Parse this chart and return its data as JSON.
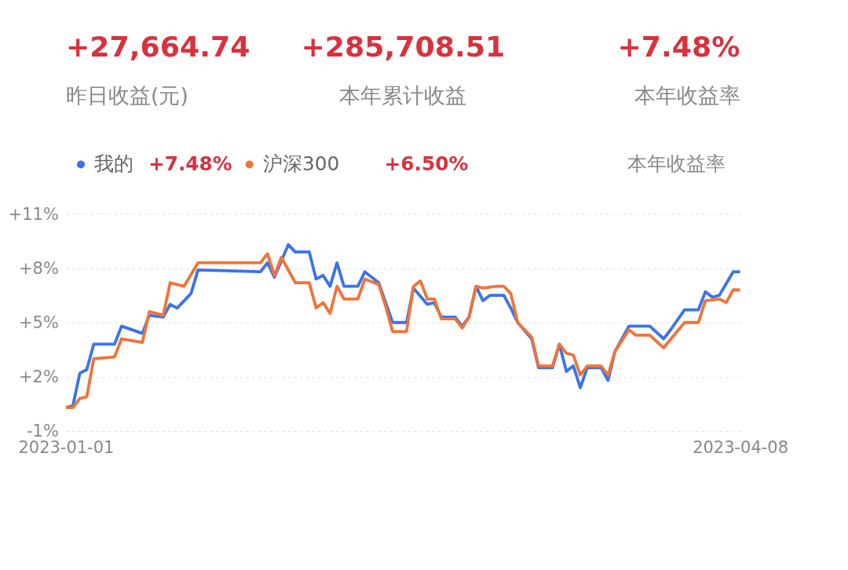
{
  "chart_data": {
    "type": "line",
    "legend": "top left",
    "grid": "y",
    "line_style": "solid",
    "marker": "none",
    "annotations": [
      "+27,664.74",
      "昨日收益(元)",
      "+285,708.51",
      "本年累计收益",
      "+7.48%",
      "本年收益率",
      "+7.48%",
      "+6.50%",
      "本年收益率"
    ],
    "xlim": [
      "2023-01-01",
      "2023-04-08"
    ],
    "xticks": [
      "2023-01-01",
      "2023-04-08"
    ],
    "ylim": [
      -1,
      11
    ],
    "yticks": [
      {
        "value": -1,
        "label": "-1%"
      },
      {
        "value": 2,
        "label": "+2%"
      },
      {
        "value": 5,
        "label": "+5%"
      },
      {
        "value": 8,
        "label": "+8%"
      },
      {
        "value": 11,
        "label": "+11%"
      }
    ],
    "series": [
      {
        "name": "我的",
        "color": "#3a73e8",
        "x": [
          "2023-01-01",
          "2023-01-02",
          "2023-01-03",
          "2023-01-04",
          "2023-01-05",
          "2023-01-08",
          "2023-01-09",
          "2023-01-12",
          "2023-01-13",
          "2023-01-15",
          "2023-01-16",
          "2023-01-17",
          "2023-01-19",
          "2023-01-20",
          "2023-01-29",
          "2023-01-30",
          "2023-01-31",
          "2023-02-02",
          "2023-02-03",
          "2023-02-05",
          "2023-02-06",
          "2023-02-07",
          "2023-02-08",
          "2023-02-09",
          "2023-02-10",
          "2023-02-12",
          "2023-02-13",
          "2023-02-15",
          "2023-02-16",
          "2023-02-17",
          "2023-02-19",
          "2023-02-20",
          "2023-02-22",
          "2023-02-23",
          "2023-02-24",
          "2023-02-26",
          "2023-02-27",
          "2023-02-28",
          "2023-03-01",
          "2023-03-02",
          "2023-03-03",
          "2023-03-05",
          "2023-03-06",
          "2023-03-07",
          "2023-03-09",
          "2023-03-10",
          "2023-03-12",
          "2023-03-13",
          "2023-03-14",
          "2023-03-15",
          "2023-03-16",
          "2023-03-17",
          "2023-03-19",
          "2023-03-20",
          "2023-03-21",
          "2023-03-23",
          "2023-03-26",
          "2023-03-28",
          "2023-03-29",
          "2023-03-31",
          "2023-04-02",
          "2023-04-03",
          "2023-04-04",
          "2023-04-05",
          "2023-04-07",
          "2023-04-08"
        ],
        "values": [
          0.3,
          0.4,
          2.2,
          2.4,
          3.8,
          3.8,
          4.8,
          4.4,
          5.4,
          5.3,
          6.0,
          5.8,
          6.6,
          7.9,
          7.8,
          8.3,
          7.5,
          9.3,
          8.9,
          8.9,
          7.4,
          7.6,
          7.0,
          8.3,
          7.0,
          7.0,
          7.8,
          7.2,
          6.1,
          5.0,
          5.0,
          6.9,
          6.0,
          6.1,
          5.3,
          5.3,
          4.8,
          5.3,
          7.0,
          6.2,
          6.5,
          6.5,
          5.8,
          5.0,
          4.1,
          2.5,
          2.5,
          3.8,
          2.3,
          2.6,
          1.4,
          2.5,
          2.5,
          1.8,
          3.4,
          4.8,
          4.8,
          4.1,
          4.6,
          5.7,
          5.7,
          6.7,
          6.4,
          6.5,
          7.8,
          7.8
        ]
      },
      {
        "name": "沪深300",
        "type": "line",
        "color": "#f0733a",
        "x": [
          "2023-01-01",
          "2023-01-02",
          "2023-01-03",
          "2023-01-04",
          "2023-01-05",
          "2023-01-08",
          "2023-01-09",
          "2023-01-12",
          "2023-01-13",
          "2023-01-15",
          "2023-01-16",
          "2023-01-18",
          "2023-01-20",
          "2023-01-29",
          "2023-01-30",
          "2023-01-31",
          "2023-02-01",
          "2023-02-03",
          "2023-02-05",
          "2023-02-06",
          "2023-02-07",
          "2023-02-08",
          "2023-02-09",
          "2023-02-10",
          "2023-02-12",
          "2023-02-13",
          "2023-02-15",
          "2023-02-16",
          "2023-02-17",
          "2023-02-19",
          "2023-02-20",
          "2023-02-21",
          "2023-02-22",
          "2023-02-23",
          "2023-02-24",
          "2023-02-26",
          "2023-02-27",
          "2023-02-28",
          "2023-03-01",
          "2023-03-02",
          "2023-03-04",
          "2023-03-05",
          "2023-03-06",
          "2023-03-07",
          "2023-03-09",
          "2023-03-10",
          "2023-03-12",
          "2023-03-13",
          "2023-03-14",
          "2023-03-15",
          "2023-03-16",
          "2023-03-17",
          "2023-03-19",
          "2023-03-20",
          "2023-03-21",
          "2023-03-23",
          "2023-03-24",
          "2023-03-26",
          "2023-03-28",
          "2023-03-31",
          "2023-04-02",
          "2023-04-03",
          "2023-04-05",
          "2023-04-06",
          "2023-04-07",
          "2023-04-08"
        ],
        "values": [
          0.3,
          0.3,
          0.8,
          0.9,
          3.0,
          3.1,
          4.1,
          3.9,
          5.6,
          5.4,
          7.2,
          7.0,
          8.3,
          8.3,
          8.8,
          7.6,
          8.6,
          7.2,
          7.2,
          5.8,
          6.1,
          5.5,
          7.0,
          6.3,
          6.3,
          7.4,
          7.1,
          5.9,
          4.5,
          4.5,
          7.0,
          7.3,
          6.3,
          6.3,
          5.2,
          5.2,
          4.7,
          5.3,
          7.0,
          6.9,
          7.0,
          7.0,
          6.6,
          5.0,
          4.2,
          2.6,
          2.6,
          3.8,
          3.3,
          3.2,
          2.1,
          2.6,
          2.6,
          2.1,
          3.4,
          4.6,
          4.3,
          4.3,
          3.6,
          5.0,
          5.0,
          6.2,
          6.3,
          6.1,
          6.8,
          6.8
        ]
      }
    ]
  }
}
